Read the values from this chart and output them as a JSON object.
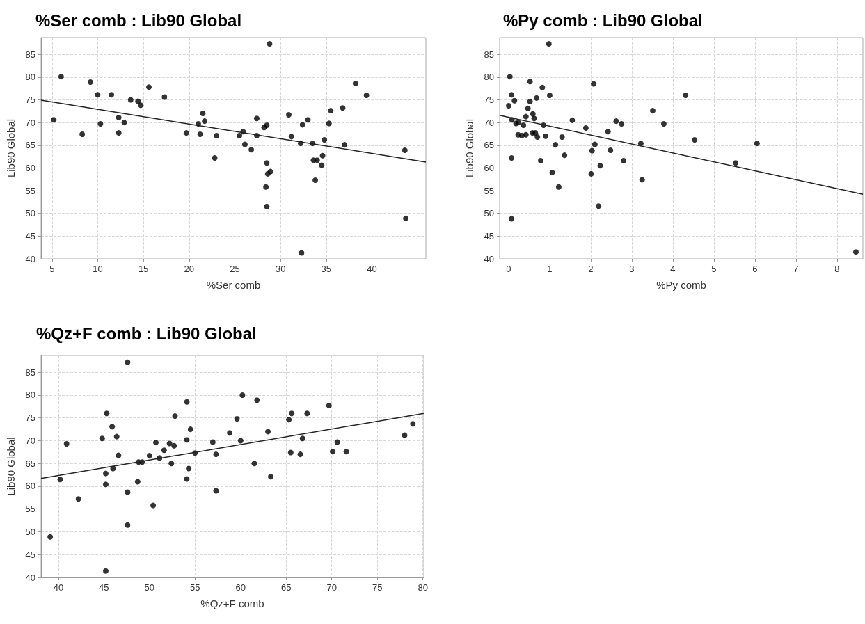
{
  "chart_data": [
    {
      "type": "scatter",
      "title": "%Ser comb : Lib90 Global",
      "xlabel": "%Ser comb",
      "ylabel": "Lib90 Global",
      "xlim": [
        3.8,
        45.9
      ],
      "ylim": [
        40,
        88.7
      ],
      "xticks": [
        5,
        10,
        15,
        20,
        25,
        30,
        35,
        40
      ],
      "yticks": [
        40,
        45,
        50,
        55,
        60,
        65,
        70,
        75,
        80,
        85
      ],
      "grid": true,
      "series": [
        {
          "type": "scatter",
          "marker": "circle",
          "color": "#000000",
          "x": [
            5.2,
            6.0,
            8.3,
            9.2,
            10.0,
            10.3,
            11.5,
            12.3,
            12.3,
            12.9,
            13.6,
            14.4,
            14.7,
            15.6,
            17.3,
            19.7,
            21.0,
            21.2,
            21.5,
            21.7,
            23.0,
            22.8,
            25.5,
            25.9,
            26.1,
            26.8,
            27.4,
            27.4,
            28.2,
            28.5,
            28.5,
            28.8,
            28.6,
            28.9,
            28.4,
            28.5,
            30.9,
            31.2,
            32.2,
            32.4,
            33.0,
            33.5,
            32.3,
            33.6,
            34.0,
            33.8,
            34.5,
            34.6,
            34.8,
            35.3,
            35.5,
            36.8,
            37.0,
            38.2,
            39.4,
            43.6,
            43.7
          ],
          "values": [
            70.6,
            80.1,
            67.4,
            78.9,
            76.1,
            69.7,
            76.1,
            71.1,
            67.7,
            70.0,
            75.0,
            74.7,
            73.8,
            77.8,
            75.6,
            67.7,
            69.7,
            67.4,
            72.0,
            70.3,
            67.1,
            62.2,
            67.1,
            68.0,
            65.2,
            64.0,
            70.9,
            67.1,
            68.9,
            69.4,
            61.1,
            87.3,
            58.7,
            59.2,
            55.8,
            51.5,
            71.7,
            66.9,
            65.4,
            69.5,
            70.6,
            65.4,
            41.3,
            61.7,
            61.7,
            57.3,
            60.6,
            62.7,
            66.2,
            69.8,
            72.6,
            73.2,
            65.1,
            78.6,
            76.0,
            63.9,
            48.9
          ]
        },
        {
          "type": "line",
          "marker": "none",
          "line_style": "solid",
          "color": "#222222",
          "x": [
            3.8,
            45.9
          ],
          "values": [
            74.9,
            61.3
          ]
        }
      ]
    },
    {
      "type": "scatter",
      "title": "%Py comb : Lib90 Global",
      "xlabel": "%Py comb",
      "ylabel": "Lib90 Global",
      "xlim": [
        -0.22,
        8.63
      ],
      "ylim": [
        40,
        88.7
      ],
      "xticks": [
        0,
        1,
        2,
        3,
        4,
        5,
        6,
        7,
        8
      ],
      "yticks": [
        40,
        45,
        50,
        55,
        60,
        65,
        70,
        75,
        80,
        85
      ],
      "grid": true,
      "series": [
        {
          "type": "scatter",
          "marker": "circle",
          "color": "#000000",
          "x": [
            0.0,
            0.03,
            0.07,
            0.14,
            0.08,
            0.07,
            0.07,
            0.18,
            0.24,
            0.23,
            0.32,
            0.36,
            0.42,
            0.42,
            0.47,
            0.52,
            0.52,
            0.59,
            0.62,
            0.58,
            0.65,
            0.7,
            0.68,
            0.82,
            0.85,
            0.9,
            0.78,
            0.98,
            1.0,
            1.06,
            1.14,
            1.22,
            1.3,
            1.36,
            1.55,
            1.88,
            2.01,
            2.03,
            2.07,
            2.1,
            2.19,
            2.23,
            2.42,
            2.48,
            2.62,
            2.75,
            2.8,
            3.22,
            3.25,
            3.51,
            3.78,
            4.31,
            4.53,
            5.53,
            6.05,
            8.46
          ],
          "values": [
            73.7,
            80.1,
            76.1,
            74.8,
            70.6,
            62.2,
            48.8,
            69.8,
            70.0,
            67.3,
            67.1,
            69.4,
            67.3,
            71.3,
            73.1,
            74.6,
            79.0,
            71.9,
            70.9,
            67.7,
            67.7,
            66.8,
            75.4,
            77.7,
            69.4,
            67.0,
            61.6,
            87.3,
            76.0,
            59.0,
            65.1,
            55.8,
            66.8,
            62.8,
            70.5,
            68.8,
            58.7,
            63.8,
            78.5,
            65.2,
            51.6,
            60.5,
            68.0,
            63.9,
            70.3,
            69.7,
            61.6,
            65.4,
            57.4,
            72.6,
            69.7,
            76.0,
            66.2,
            61.1,
            65.4,
            41.5
          ]
        },
        {
          "type": "line",
          "marker": "none",
          "line_style": "solid",
          "color": "#222222",
          "x": [
            -0.22,
            8.63
          ],
          "values": [
            71.6,
            54.2
          ]
        }
      ]
    },
    {
      "type": "scatter",
      "title": "%Qz+F comb : Lib90 Global",
      "xlabel": "%Qz+F comb",
      "ylabel": "Lib90 Global",
      "xlim": [
        38.1,
        80.1
      ],
      "ylim": [
        40,
        88.7
      ],
      "xticks": [
        40,
        45,
        50,
        55,
        60,
        65,
        70,
        75,
        80
      ],
      "yticks": [
        40,
        45,
        50,
        55,
        60,
        65,
        70,
        75,
        80,
        85
      ],
      "grid": true,
      "series": [
        {
          "type": "scatter",
          "marker": "circle",
          "color": "#000000",
          "x": [
            39.1,
            40.2,
            40.9,
            42.2,
            44.8,
            45.2,
            45.2,
            45.2,
            45.3,
            45.9,
            46.0,
            46.4,
            46.6,
            47.6,
            47.6,
            47.6,
            48.7,
            48.8,
            49.2,
            50.0,
            50.4,
            50.7,
            51.1,
            51.6,
            52.2,
            52.4,
            52.7,
            52.8,
            54.1,
            54.1,
            54.1,
            54.3,
            54.5,
            55.0,
            56.95,
            57.3,
            57.3,
            58.8,
            59.6,
            60.2,
            60.0,
            61.8,
            61.5,
            63.0,
            63.3,
            65.3,
            65.6,
            65.5,
            66.55,
            66.8,
            67.3,
            69.7,
            70.1,
            70.6,
            71.6,
            78.0,
            78.9
          ],
          "values": [
            48.9,
            61.5,
            69.3,
            57.2,
            70.5,
            62.8,
            60.4,
            41.4,
            76.0,
            73.1,
            63.9,
            70.9,
            66.8,
            87.2,
            58.7,
            51.5,
            61.0,
            65.3,
            65.3,
            66.7,
            55.8,
            69.6,
            66.2,
            67.9,
            69.4,
            65.0,
            68.9,
            75.4,
            78.5,
            70.2,
            61.6,
            63.9,
            72.5,
            67.3,
            69.7,
            67.0,
            59.0,
            71.7,
            74.8,
            80.0,
            70.0,
            78.9,
            65.0,
            72.0,
            62.1,
            74.6,
            76.0,
            67.4,
            67.0,
            70.5,
            76.0,
            77.7,
            67.6,
            69.7,
            67.6,
            71.2,
            73.7
          ]
        },
        {
          "type": "line",
          "marker": "none",
          "line_style": "solid",
          "color": "#222222",
          "x": [
            38.1,
            80.1
          ],
          "values": [
            61.7,
            76.0
          ]
        }
      ]
    }
  ]
}
